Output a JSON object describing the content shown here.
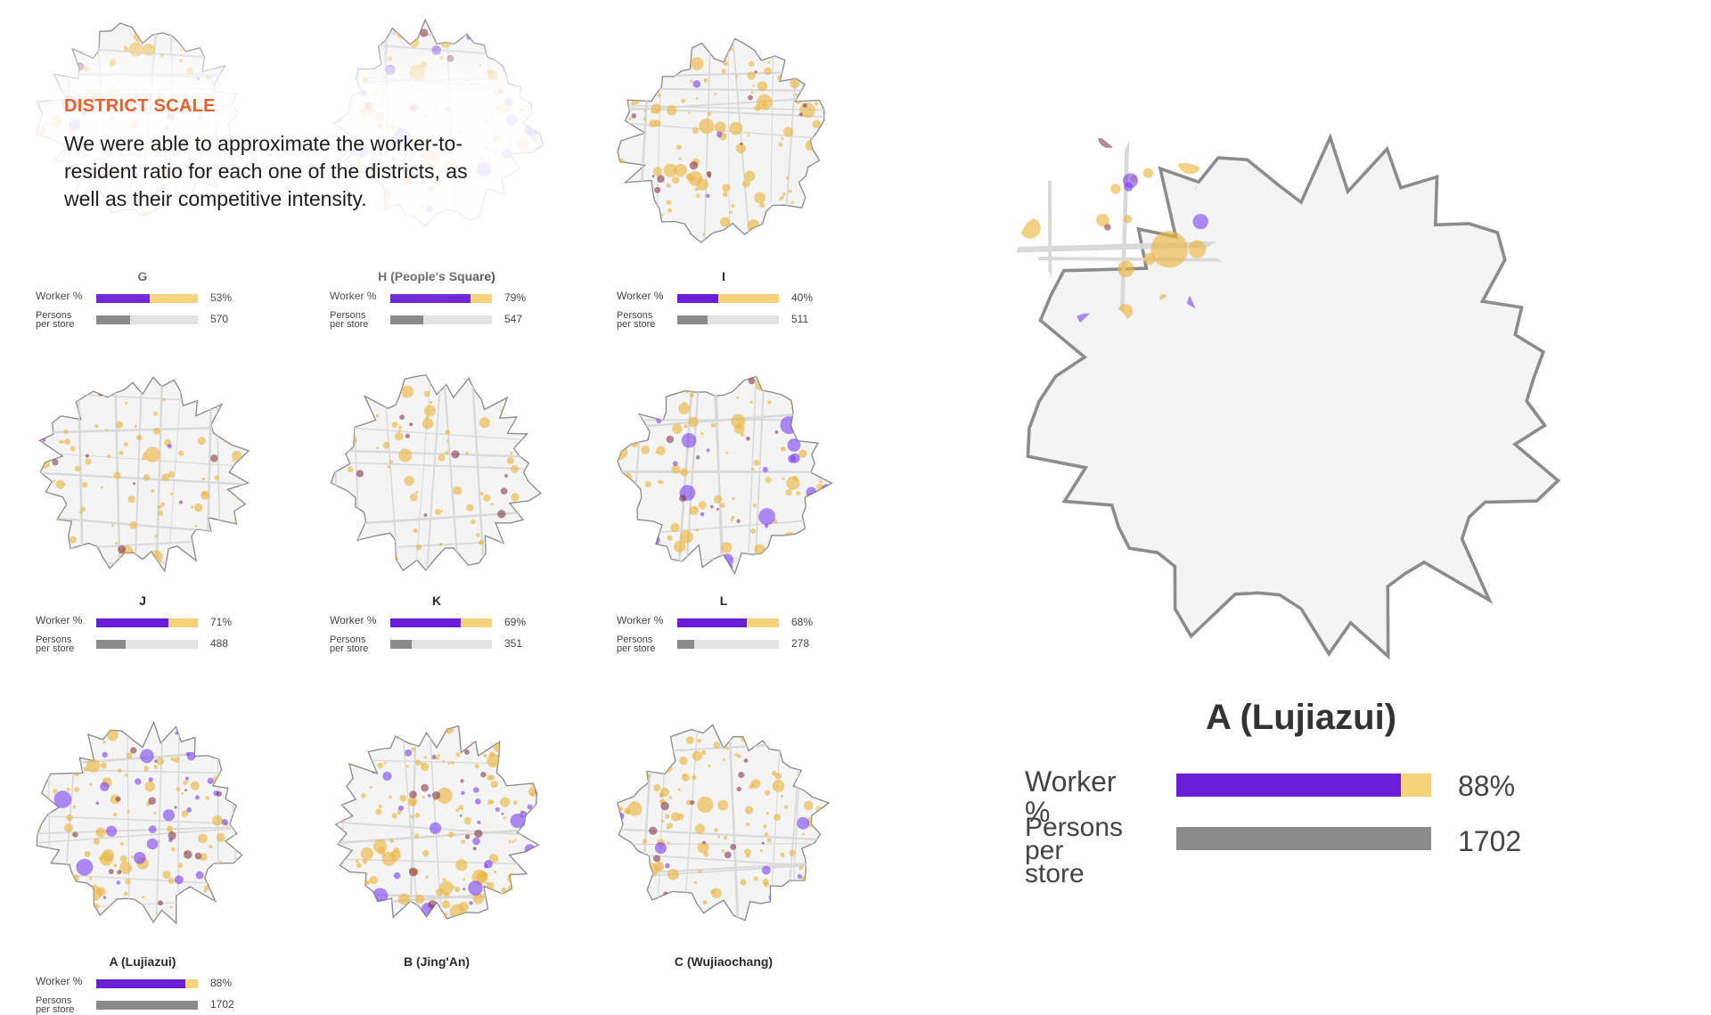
{
  "header": {
    "section_title": "DISTRICT SCALE",
    "description": "We were able to approximate the worker-to-resident ratio for each one of the districts, as well as their competitive intensity."
  },
  "labels": {
    "worker": "Worker %",
    "persons_line1": "Persons",
    "persons_line2": "per store"
  },
  "colors": {
    "worker": "#6a1fd6",
    "resident": "#f5d27a",
    "persons": "#8a8a8a",
    "track": "#e3e3e3",
    "accent": "#e8612c"
  },
  "districts": [
    {
      "name": "G",
      "worker_pct": 53,
      "worker_label": "53%",
      "persons_per_store": 570,
      "persons_label": "570",
      "worker_density": 0.06,
      "resident_density": 0.35
    },
    {
      "name": "H (People's Square)",
      "worker_pct": 79,
      "worker_label": "79%",
      "persons_per_store": 547,
      "persons_label": "547",
      "worker_density": 0.25,
      "resident_density": 0.45
    },
    {
      "name": "I",
      "worker_pct": 40,
      "worker_label": "40%",
      "persons_per_store": 511,
      "persons_label": "511",
      "worker_density": 0.07,
      "resident_density": 0.7
    },
    {
      "name": "J",
      "worker_pct": 71,
      "worker_label": "71%",
      "persons_per_store": 488,
      "persons_label": "488",
      "worker_density": 0.02,
      "resident_density": 0.35
    },
    {
      "name": "K",
      "worker_pct": 69,
      "worker_label": "69%",
      "persons_per_store": 351,
      "persons_label": "351",
      "worker_density": 0.0,
      "resident_density": 0.35
    },
    {
      "name": "L",
      "worker_pct": 68,
      "worker_label": "68%",
      "persons_per_store": 278,
      "persons_label": "278",
      "worker_density": 0.22,
      "resident_density": 0.4
    },
    {
      "name": "A (Lujiazui)",
      "worker_pct": 88,
      "worker_label": "88%",
      "persons_per_store": 1702,
      "persons_label": "1702",
      "worker_density": 0.35,
      "resident_density": 0.7
    },
    {
      "name": "B (Jing'An)",
      "worker_pct": null,
      "worker_label": "",
      "persons_per_store": null,
      "persons_label": "",
      "worker_density": 0.3,
      "resident_density": 1.0
    },
    {
      "name": "C (Wujiaochang)",
      "worker_pct": null,
      "worker_label": "",
      "persons_per_store": null,
      "persons_label": "",
      "worker_density": 0.15,
      "resident_density": 0.7
    }
  ],
  "featured": {
    "name": "A (Lujiazui)",
    "worker_pct": 88,
    "worker_label": "88%",
    "persons_per_store": 1702,
    "persons_label": "1702"
  }
}
